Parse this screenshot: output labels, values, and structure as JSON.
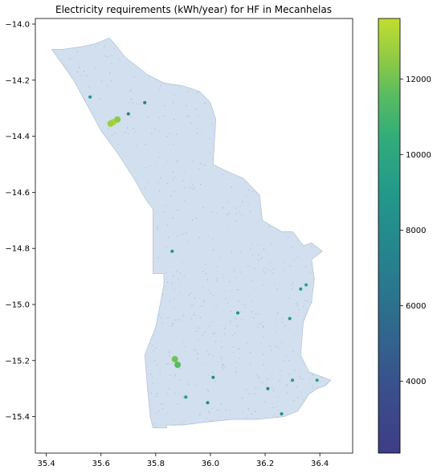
{
  "chart_data": {
    "type": "heatmap",
    "title": "Electricity requirements (kWh/year) for HF in Mecanhelas",
    "x_ticks": [
      "35.4",
      "35.6",
      "35.8",
      "36.0",
      "36.2",
      "36.4"
    ],
    "x_tick_values": [
      35.4,
      35.6,
      35.8,
      36.0,
      36.2,
      36.4
    ],
    "xlim": [
      35.36,
      36.52
    ],
    "y_ticks": [
      "−14.0",
      "−14.2",
      "−14.4",
      "−14.6",
      "−14.8",
      "−15.0",
      "−15.2",
      "−15.4"
    ],
    "y_tick_values": [
      -14.0,
      -14.2,
      -14.4,
      -14.6,
      -14.8,
      -15.0,
      -15.2,
      -15.4
    ],
    "ylim": [
      -15.53,
      -13.98
    ],
    "colorbar": {
      "min": 2100,
      "max": 13600,
      "ticks": [
        "4000",
        "6000",
        "8000",
        "10000",
        "12000"
      ],
      "tick_values": [
        4000,
        6000,
        8000,
        10000,
        12000
      ],
      "colormap": "viridis"
    },
    "district_outline": [
      [
        35.42,
        -14.09
      ],
      [
        35.46,
        -14.09
      ],
      [
        35.53,
        -14.08
      ],
      [
        35.58,
        -14.07
      ],
      [
        35.63,
        -14.05
      ],
      [
        35.65,
        -14.07
      ],
      [
        35.69,
        -14.12
      ],
      [
        35.73,
        -14.15
      ],
      [
        35.77,
        -14.18
      ],
      [
        35.83,
        -14.21
      ],
      [
        35.9,
        -14.22
      ],
      [
        35.96,
        -14.24
      ],
      [
        36.0,
        -14.28
      ],
      [
        36.02,
        -14.34
      ],
      [
        36.01,
        -14.5
      ],
      [
        36.05,
        -14.52
      ],
      [
        36.12,
        -14.55
      ],
      [
        36.18,
        -14.61
      ],
      [
        36.19,
        -14.7
      ],
      [
        36.26,
        -14.74
      ],
      [
        36.3,
        -14.74
      ],
      [
        36.34,
        -14.79
      ],
      [
        36.37,
        -14.78
      ],
      [
        36.41,
        -14.81
      ],
      [
        36.37,
        -14.84
      ],
      [
        36.38,
        -14.91
      ],
      [
        36.37,
        -14.99
      ],
      [
        36.34,
        -15.06
      ],
      [
        36.33,
        -15.18
      ],
      [
        36.36,
        -15.24
      ],
      [
        36.44,
        -15.27
      ],
      [
        36.42,
        -15.29
      ],
      [
        36.39,
        -15.3
      ],
      [
        36.36,
        -15.32
      ],
      [
        36.32,
        -15.38
      ],
      [
        36.27,
        -15.4
      ],
      [
        36.17,
        -15.41
      ],
      [
        36.08,
        -15.41
      ],
      [
        35.98,
        -15.42
      ],
      [
        35.9,
        -15.43
      ],
      [
        35.84,
        -15.43
      ],
      [
        35.84,
        -15.44
      ],
      [
        35.79,
        -15.44
      ],
      [
        35.78,
        -15.4
      ],
      [
        35.77,
        -15.3
      ],
      [
        35.76,
        -15.18
      ],
      [
        35.8,
        -15.08
      ],
      [
        35.83,
        -14.93
      ],
      [
        35.83,
        -14.89
      ],
      [
        35.79,
        -14.89
      ],
      [
        35.79,
        -14.66
      ],
      [
        35.76,
        -14.62
      ],
      [
        35.72,
        -14.55
      ],
      [
        35.66,
        -14.46
      ],
      [
        35.6,
        -14.38
      ],
      [
        35.5,
        -14.2
      ],
      [
        35.42,
        -14.09
      ]
    ],
    "hotspots": [
      {
        "x": 35.645,
        "y": -14.35,
        "value": 13200
      },
      {
        "x": 35.66,
        "y": -14.34,
        "value": 12500
      },
      {
        "x": 35.635,
        "y": -14.355,
        "value": 12800
      },
      {
        "x": 35.87,
        "y": -15.195,
        "value": 12000
      },
      {
        "x": 35.88,
        "y": -15.215,
        "value": 11500
      },
      {
        "x": 36.35,
        "y": -14.93,
        "value": 9800
      },
      {
        "x": 36.33,
        "y": -14.945,
        "value": 9000
      },
      {
        "x": 35.56,
        "y": -14.26,
        "value": 8800
      },
      {
        "x": 35.86,
        "y": -14.81,
        "value": 8500
      },
      {
        "x": 36.29,
        "y": -15.05,
        "value": 8600
      },
      {
        "x": 36.3,
        "y": -15.27,
        "value": 9200
      },
      {
        "x": 36.26,
        "y": -15.39,
        "value": 8200
      },
      {
        "x": 35.91,
        "y": -15.33,
        "value": 8800
      },
      {
        "x": 36.1,
        "y": -15.03,
        "value": 8000
      },
      {
        "x": 36.01,
        "y": -15.26,
        "value": 7800
      },
      {
        "x": 35.99,
        "y": -15.35,
        "value": 7500
      },
      {
        "x": 36.39,
        "y": -15.27,
        "value": 9500
      },
      {
        "x": 36.21,
        "y": -15.3,
        "value": 7300
      },
      {
        "x": 35.7,
        "y": -14.32,
        "value": 7200
      },
      {
        "x": 35.76,
        "y": -14.28,
        "value": 7000
      }
    ]
  }
}
